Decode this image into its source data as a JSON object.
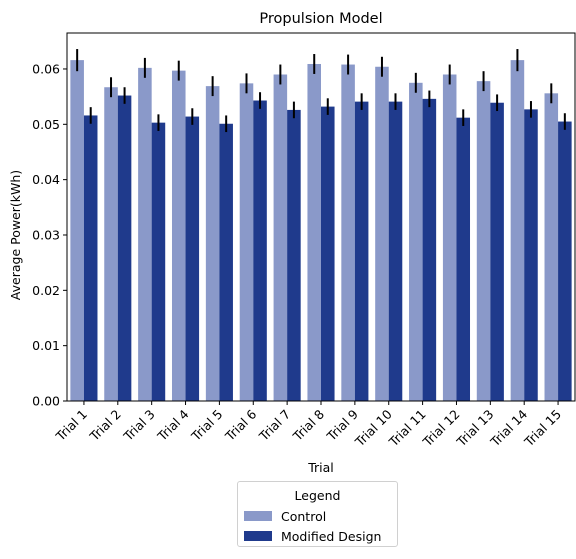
{
  "chart_data": {
    "type": "bar",
    "title": "Propulsion Model",
    "xlabel": "Trial",
    "ylabel": "Average Power(kWh)",
    "ylim": [
      0,
      0.0665
    ],
    "yticks": [
      "0.00",
      "0.01",
      "0.02",
      "0.03",
      "0.04",
      "0.05",
      "0.06"
    ],
    "categories": [
      "Trial 1",
      "Trial 2",
      "Trial 3",
      "Trial 4",
      "Trial 5",
      "Trial 6",
      "Trial 7",
      "Trial 8",
      "Trial 9",
      "Trial 10",
      "Trial 11",
      "Trial 12",
      "Trial 13",
      "Trial 14",
      "Trial 15"
    ],
    "series": [
      {
        "name": "Control",
        "color": "#8a99c9",
        "values": [
          0.0616,
          0.0567,
          0.0602,
          0.0597,
          0.0569,
          0.0574,
          0.059,
          0.0609,
          0.0608,
          0.0604,
          0.0575,
          0.059,
          0.0578,
          0.0616,
          0.0556
        ],
        "errors": [
          0.002,
          0.0018,
          0.0018,
          0.0018,
          0.0018,
          0.0018,
          0.0018,
          0.0018,
          0.0018,
          0.0018,
          0.0018,
          0.0018,
          0.0018,
          0.002,
          0.0018
        ]
      },
      {
        "name": "Modified Design",
        "color": "#1f3a8c",
        "values": [
          0.0516,
          0.0552,
          0.0503,
          0.0514,
          0.0501,
          0.0543,
          0.0526,
          0.0532,
          0.0541,
          0.0541,
          0.0546,
          0.0512,
          0.0539,
          0.0527,
          0.0505
        ],
        "errors": [
          0.0015,
          0.0015,
          0.0015,
          0.0015,
          0.0015,
          0.0015,
          0.0015,
          0.0015,
          0.0015,
          0.0015,
          0.0015,
          0.0015,
          0.0015,
          0.0015,
          0.0015
        ]
      }
    ],
    "legend": {
      "title": "Legend",
      "placement": "below"
    },
    "grid": false
  }
}
